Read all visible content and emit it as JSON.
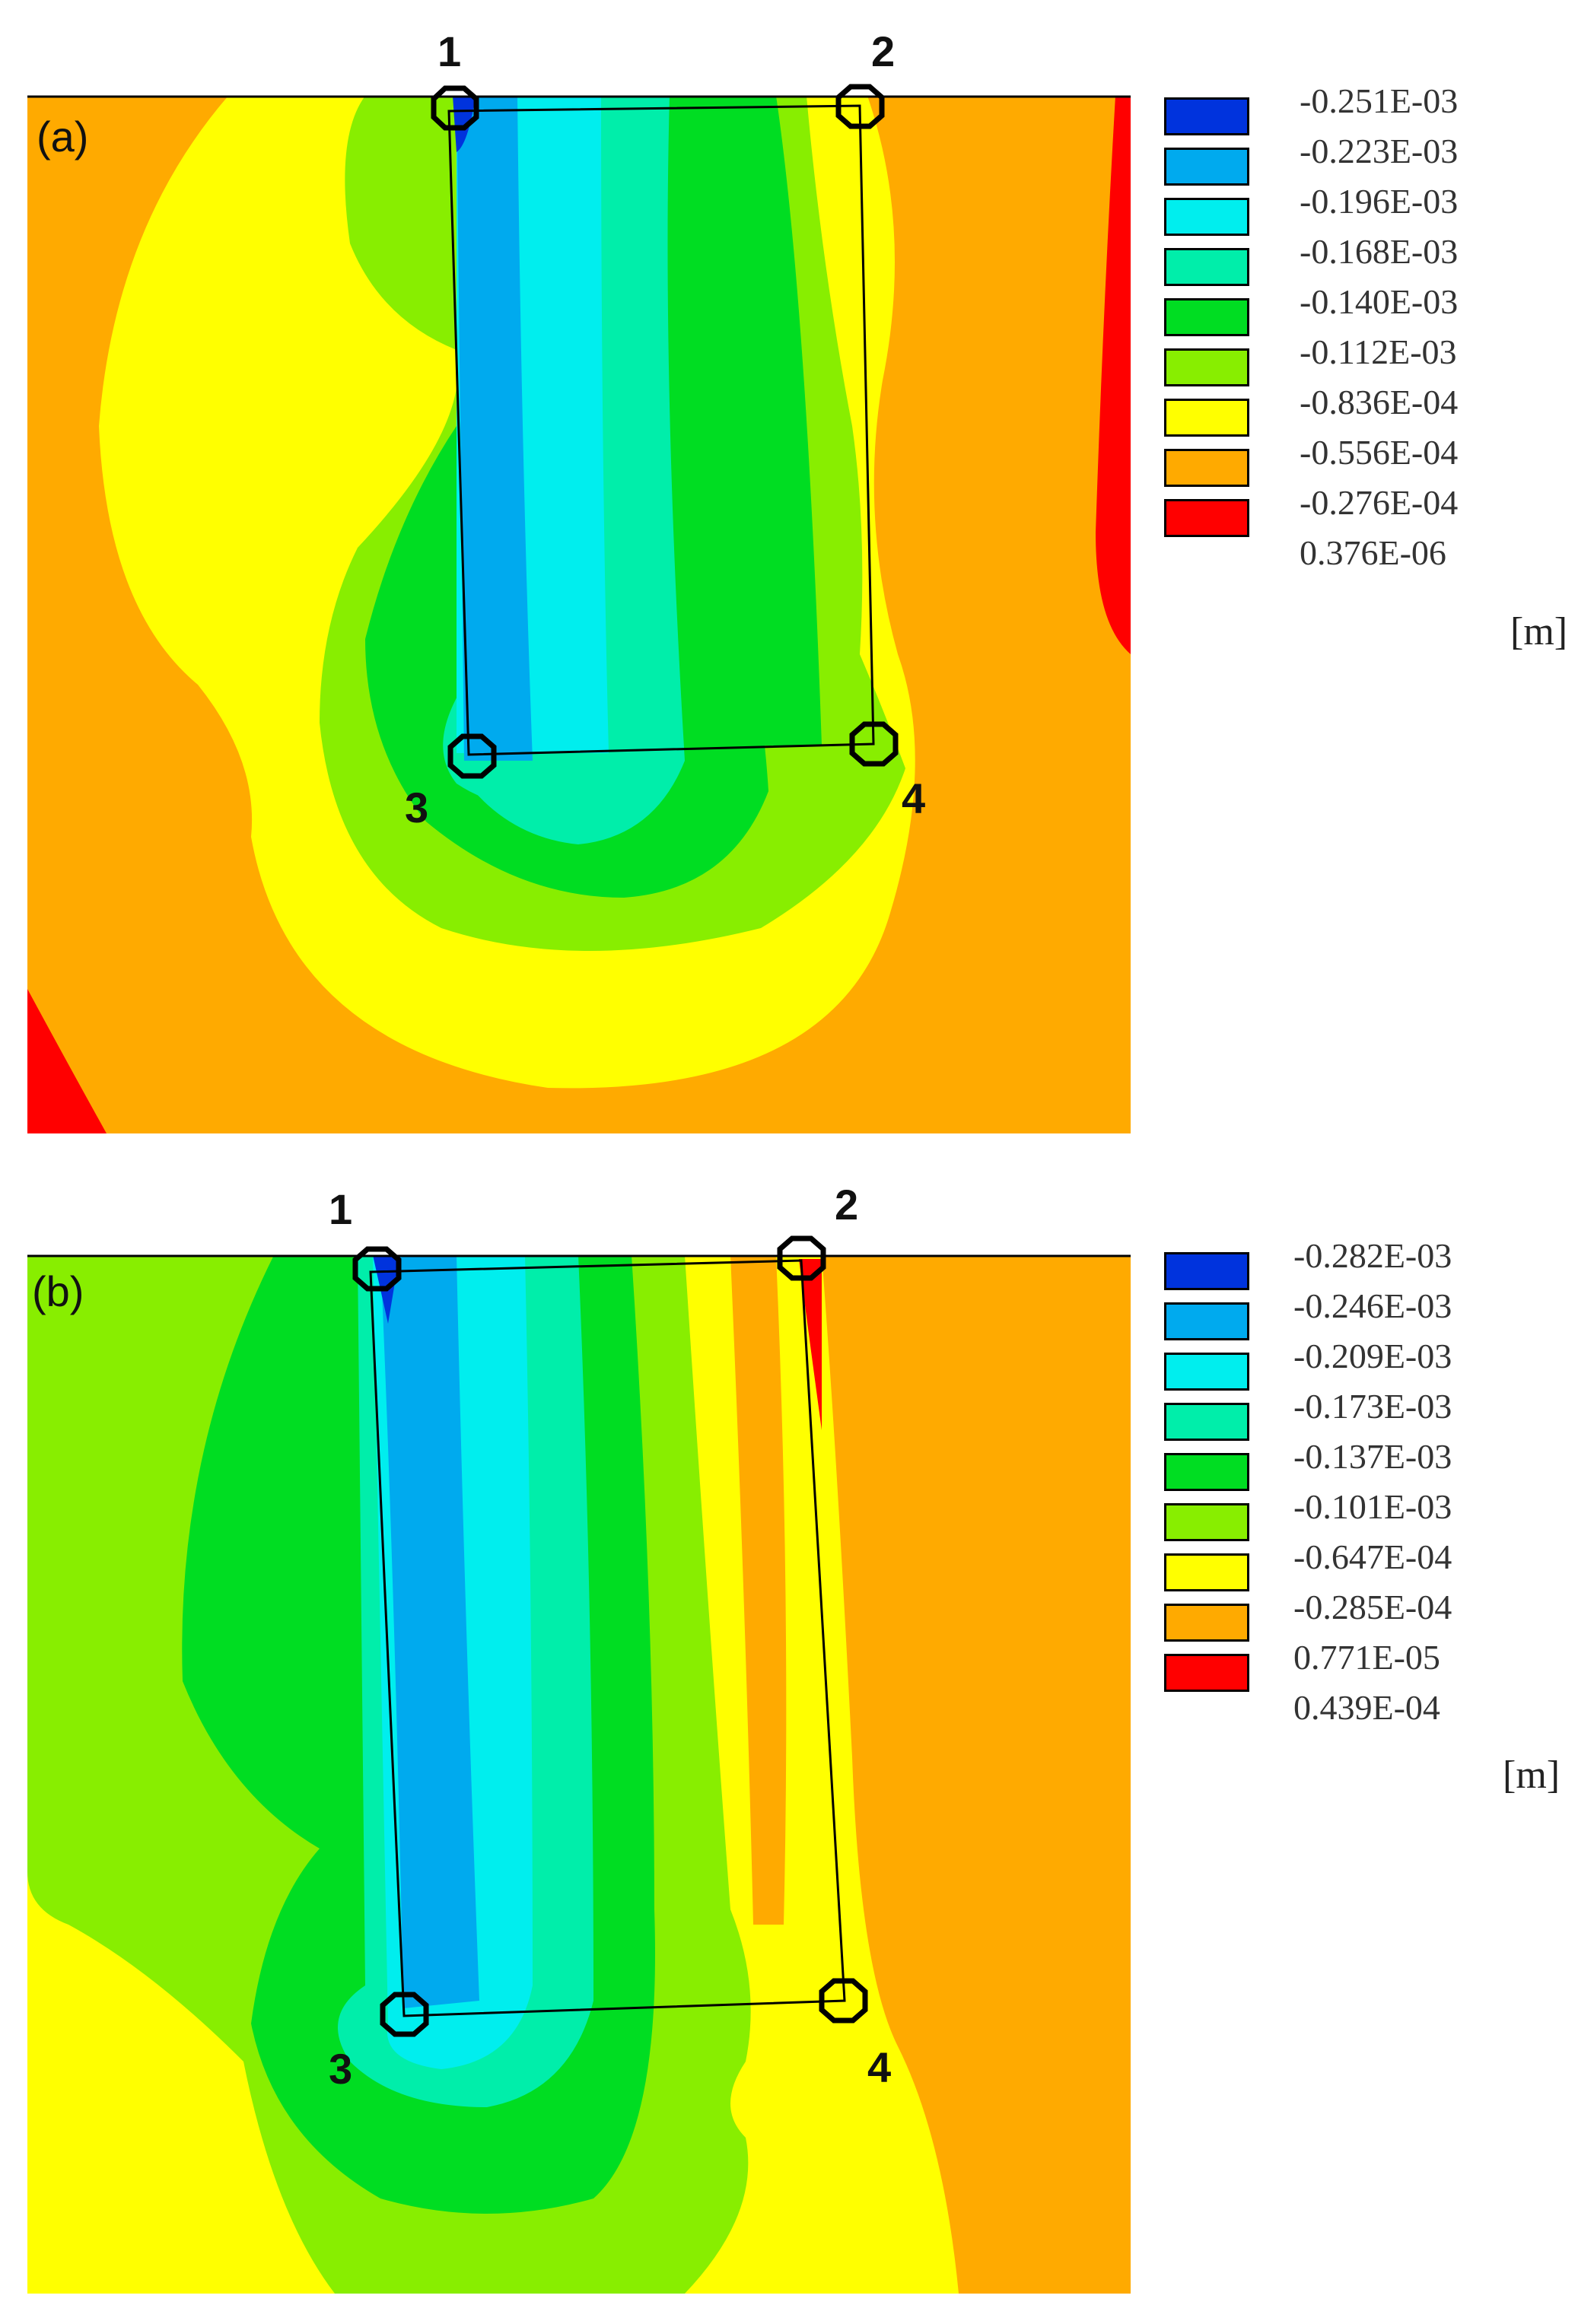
{
  "colors": {
    "dark_blue": "#0033dd",
    "blue": "#00aaee",
    "cyan": "#00eeee",
    "aqua": "#00eeaa",
    "green": "#00dd22",
    "yellow_green": "#88ee00",
    "yellow": "#ffff00",
    "orange": "#ffaa00",
    "red": "#ff0000"
  },
  "panel_a": {
    "tag": "(a)",
    "points": [
      "1",
      "2",
      "3",
      "4"
    ],
    "legend": [
      "-0.251E-03",
      "-0.223E-03",
      "-0.196E-03",
      "-0.168E-03",
      "-0.140E-03",
      "-0.112E-03",
      "-0.836E-04",
      "-0.556E-04",
      "-0.276E-04",
      "0.376E-06"
    ],
    "unit": "[m]"
  },
  "panel_b": {
    "tag": "(b)",
    "points": [
      "1",
      "2",
      "3",
      "4"
    ],
    "legend": [
      "-0.282E-03",
      "-0.246E-03",
      "-0.209E-03",
      "-0.173E-03",
      "-0.137E-03",
      "-0.101E-03",
      "-0.647E-04",
      "-0.285E-04",
      "0.771E-05",
      "0.439E-04"
    ],
    "unit": "[m]"
  }
}
